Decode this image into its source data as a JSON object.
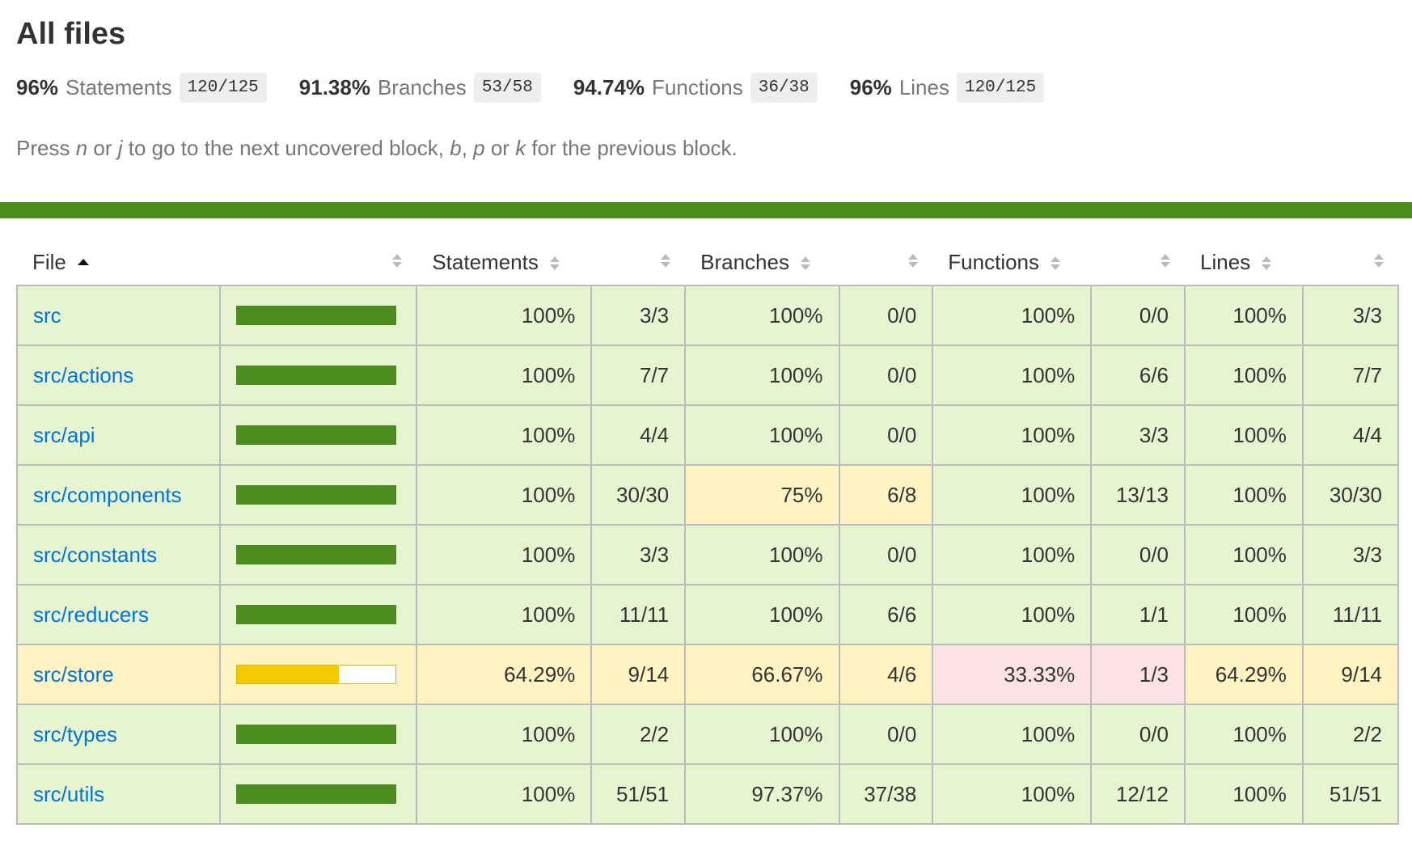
{
  "title": "All files",
  "summary": [
    {
      "pct": "96%",
      "label": "Statements",
      "fraction": "120/125"
    },
    {
      "pct": "91.38%",
      "label": "Branches",
      "fraction": "53/58"
    },
    {
      "pct": "94.74%",
      "label": "Functions",
      "fraction": "36/38"
    },
    {
      "pct": "96%",
      "label": "Lines",
      "fraction": "120/125"
    }
  ],
  "hint": {
    "p1": "Press ",
    "k1": "n",
    "p2": " or ",
    "k2": "j",
    "p3": " to go to the next uncovered block, ",
    "k3": "b",
    "p4": ", ",
    "k4": "p",
    "p5": " or ",
    "k5": "k",
    "p6": " for the previous block."
  },
  "colors": {
    "high": "#e6f5d0",
    "medium": "#fff4c2",
    "low": "#fce1e5",
    "bar_green": "#4d8c1f",
    "bar_yellow": "#f5c900",
    "link": "#0074d9"
  },
  "columns": {
    "file": "File",
    "statements": "Statements",
    "branches": "Branches",
    "functions": "Functions",
    "lines": "Lines"
  },
  "rows": [
    {
      "file": "src",
      "coverage": 1.0,
      "statements": "100%",
      "statements_frac": "3/3",
      "branches": "100%",
      "branches_frac": "0/0",
      "functions": "100%",
      "functions_frac": "0/0",
      "lines": "100%",
      "lines_frac": "3/3",
      "levels": [
        "high",
        "high",
        "high",
        "high"
      ]
    },
    {
      "file": "src/actions",
      "coverage": 1.0,
      "statements": "100%",
      "statements_frac": "7/7",
      "branches": "100%",
      "branches_frac": "0/0",
      "functions": "100%",
      "functions_frac": "6/6",
      "lines": "100%",
      "lines_frac": "7/7",
      "levels": [
        "high",
        "high",
        "high",
        "high"
      ]
    },
    {
      "file": "src/api",
      "coverage": 1.0,
      "statements": "100%",
      "statements_frac": "4/4",
      "branches": "100%",
      "branches_frac": "0/0",
      "functions": "100%",
      "functions_frac": "3/3",
      "lines": "100%",
      "lines_frac": "4/4",
      "levels": [
        "high",
        "high",
        "high",
        "high"
      ]
    },
    {
      "file": "src/components",
      "coverage": 1.0,
      "statements": "100%",
      "statements_frac": "30/30",
      "branches": "75%",
      "branches_frac": "6/8",
      "functions": "100%",
      "functions_frac": "13/13",
      "lines": "100%",
      "lines_frac": "30/30",
      "levels": [
        "high",
        "medium",
        "high",
        "high"
      ]
    },
    {
      "file": "src/constants",
      "coverage": 1.0,
      "statements": "100%",
      "statements_frac": "3/3",
      "branches": "100%",
      "branches_frac": "0/0",
      "functions": "100%",
      "functions_frac": "0/0",
      "lines": "100%",
      "lines_frac": "3/3",
      "levels": [
        "high",
        "high",
        "high",
        "high"
      ]
    },
    {
      "file": "src/reducers",
      "coverage": 1.0,
      "statements": "100%",
      "statements_frac": "11/11",
      "branches": "100%",
      "branches_frac": "6/6",
      "functions": "100%",
      "functions_frac": "1/1",
      "lines": "100%",
      "lines_frac": "11/11",
      "levels": [
        "high",
        "high",
        "high",
        "high"
      ]
    },
    {
      "file": "src/store",
      "coverage": 0.6429,
      "statements": "64.29%",
      "statements_frac": "9/14",
      "branches": "66.67%",
      "branches_frac": "4/6",
      "functions": "33.33%",
      "functions_frac": "1/3",
      "lines": "64.29%",
      "lines_frac": "9/14",
      "levels": [
        "medium",
        "medium",
        "low",
        "medium"
      ]
    },
    {
      "file": "src/types",
      "coverage": 1.0,
      "statements": "100%",
      "statements_frac": "2/2",
      "branches": "100%",
      "branches_frac": "0/0",
      "functions": "100%",
      "functions_frac": "0/0",
      "lines": "100%",
      "lines_frac": "2/2",
      "levels": [
        "high",
        "high",
        "high",
        "high"
      ]
    },
    {
      "file": "src/utils",
      "coverage": 1.0,
      "statements": "100%",
      "statements_frac": "51/51",
      "branches": "97.37%",
      "branches_frac": "37/38",
      "functions": "100%",
      "functions_frac": "12/12",
      "lines": "100%",
      "lines_frac": "51/51",
      "levels": [
        "high",
        "high",
        "high",
        "high"
      ]
    }
  ]
}
